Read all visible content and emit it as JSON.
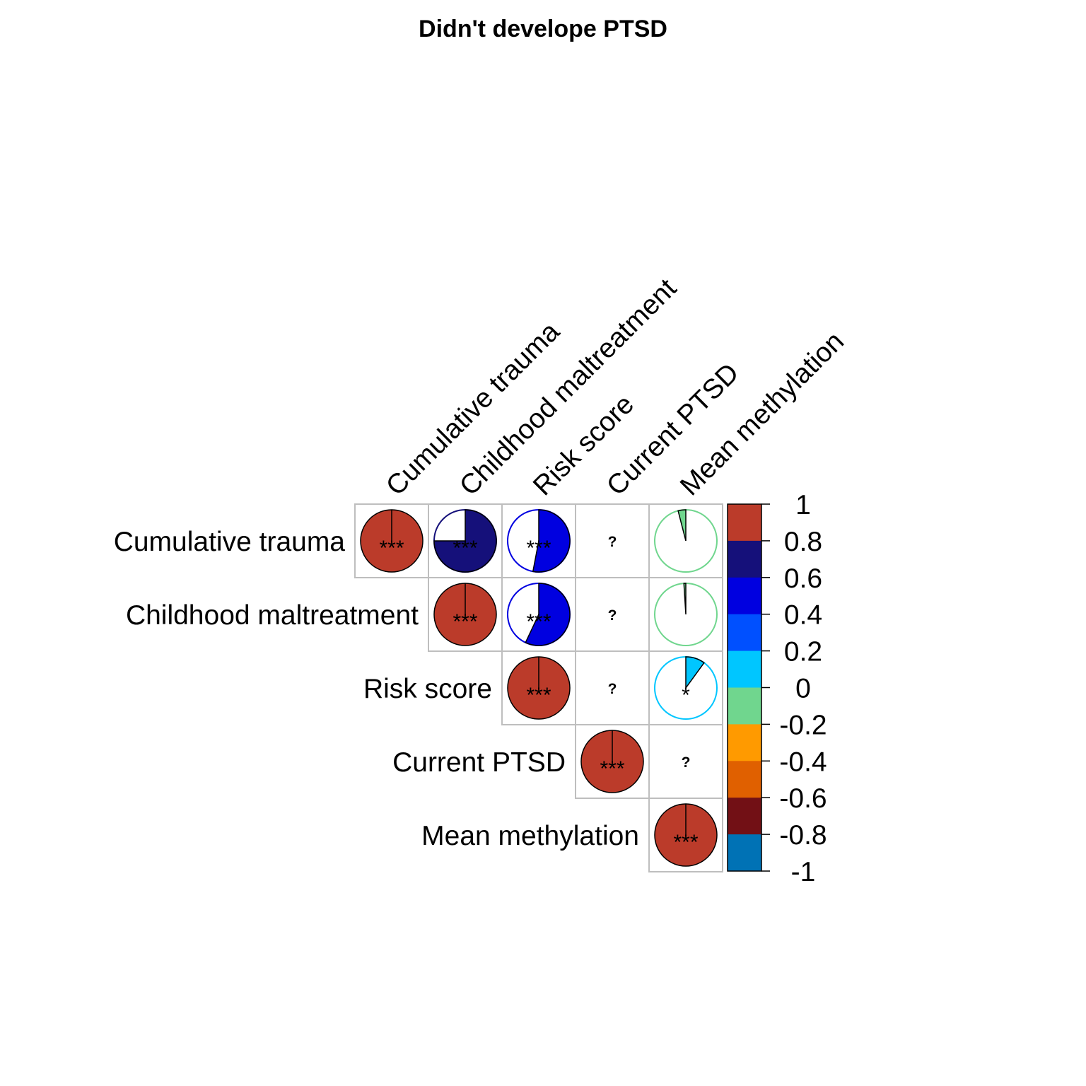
{
  "chart_data": {
    "type": "heatmap",
    "subtype": "correlation-pie-upper",
    "title": "Didn't develope PTSD",
    "variables": [
      "Cumulative trauma",
      "Childhood maltreatment",
      "Risk score",
      "Current PTSD",
      "Mean methylation"
    ],
    "cells": [
      {
        "row": 0,
        "col": 0,
        "r": 1.0,
        "sig": "***"
      },
      {
        "row": 0,
        "col": 1,
        "r": 0.75,
        "sig": "***"
      },
      {
        "row": 0,
        "col": 2,
        "r": 0.53,
        "sig": "***"
      },
      {
        "row": 0,
        "col": 3,
        "r": null,
        "sig": "?"
      },
      {
        "row": 0,
        "col": 4,
        "r": -0.04,
        "sig": ""
      },
      {
        "row": 1,
        "col": 1,
        "r": 1.0,
        "sig": "***"
      },
      {
        "row": 1,
        "col": 2,
        "r": 0.57,
        "sig": "***"
      },
      {
        "row": 1,
        "col": 3,
        "r": null,
        "sig": "?"
      },
      {
        "row": 1,
        "col": 4,
        "r": -0.01,
        "sig": ""
      },
      {
        "row": 2,
        "col": 2,
        "r": 1.0,
        "sig": "***"
      },
      {
        "row": 2,
        "col": 3,
        "r": null,
        "sig": "?"
      },
      {
        "row": 2,
        "col": 4,
        "r": 0.1,
        "sig": "*"
      },
      {
        "row": 3,
        "col": 3,
        "r": 1.0,
        "sig": "***"
      },
      {
        "row": 3,
        "col": 4,
        "r": null,
        "sig": "?"
      },
      {
        "row": 4,
        "col": 4,
        "r": 1.0,
        "sig": "***"
      }
    ],
    "colorbar": {
      "ticks": [
        "1",
        "0.8",
        "0.6",
        "0.4",
        "0.2",
        "0",
        "-0.2",
        "-0.4",
        "-0.6",
        "-0.8",
        "-1"
      ],
      "bins": [
        {
          "range": [
            0.8,
            1.0
          ],
          "color": "#BB3B2A"
        },
        {
          "range": [
            0.6,
            0.8
          ],
          "color": "#15107A"
        },
        {
          "range": [
            0.4,
            0.6
          ],
          "color": "#0000E0"
        },
        {
          "range": [
            0.2,
            0.4
          ],
          "color": "#0050FF"
        },
        {
          "range": [
            0.0,
            0.2
          ],
          "color": "#00C6FF"
        },
        {
          "range": [
            -0.2,
            0.0
          ],
          "color": "#70D68E"
        },
        {
          "range": [
            -0.4,
            -0.2
          ],
          "color": "#FF9A00"
        },
        {
          "range": [
            -0.6,
            -0.4
          ],
          "color": "#E06000"
        },
        {
          "range": [
            -0.8,
            -0.6
          ],
          "color": "#721015"
        },
        {
          "range": [
            -1.0,
            -0.8
          ],
          "color": "#0072B5"
        }
      ]
    },
    "grid_color": "#BEBEBE"
  }
}
